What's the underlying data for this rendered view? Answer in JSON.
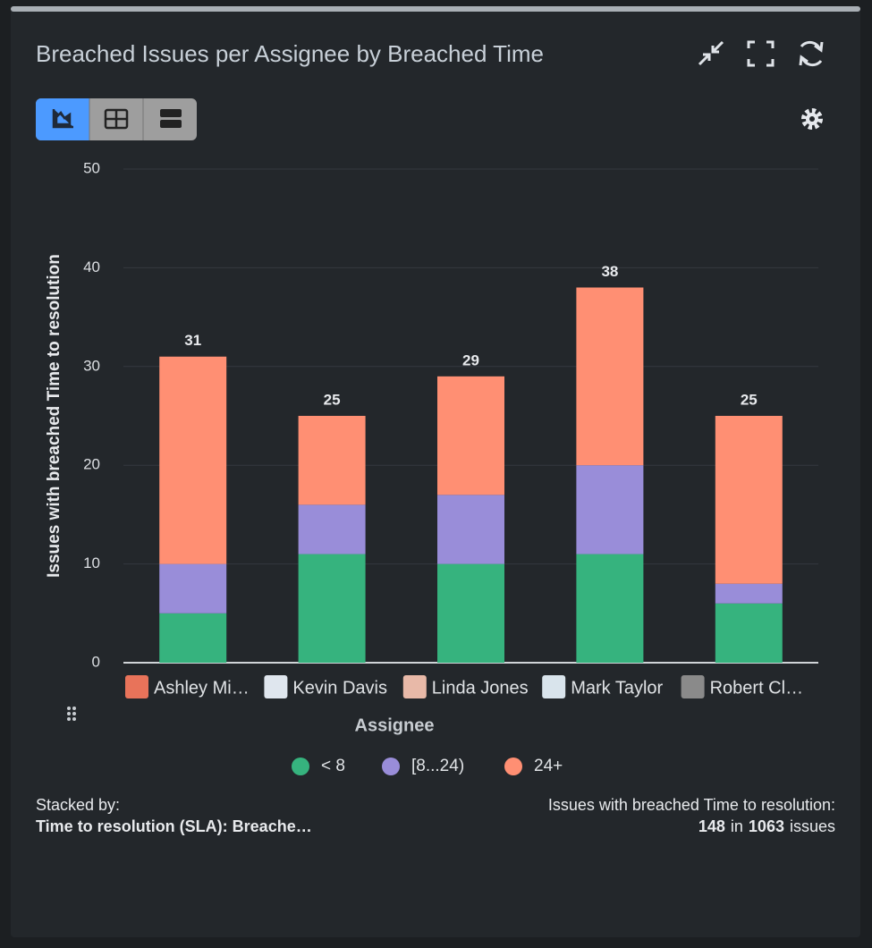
{
  "header": {
    "title": "Breached Issues per Assignee by Breached Time"
  },
  "chart_data": {
    "type": "bar",
    "stacked": true,
    "y_label": "Issues with breached Time to resolution",
    "x_label": "Assignee",
    "categories": [
      "Ashley Mi…",
      "Kevin Davis",
      "Linda Jones",
      "Mark Taylor",
      "Robert Cl…"
    ],
    "series": [
      {
        "name": "< 8",
        "color": "#36b37e",
        "values": [
          5,
          11,
          10,
          11,
          6
        ]
      },
      {
        "name": "[8...24)",
        "color": "#998dd9",
        "values": [
          5,
          5,
          7,
          9,
          2
        ]
      },
      {
        "name": "24+",
        "color": "#ff8f73",
        "values": [
          21,
          9,
          12,
          18,
          17
        ]
      }
    ],
    "totals": [
      31,
      25,
      29,
      38,
      25
    ],
    "ylim": [
      0,
      50
    ],
    "yticks": [
      0,
      10,
      20,
      30,
      40,
      50
    ],
    "grid": true
  },
  "footer": {
    "stacked_by_label": "Stacked by:",
    "stacked_by_value": "Time to resolution (SLA): Breache…",
    "summary_label": "Issues with breached Time to resolution:",
    "breached": "148",
    "in_text": "in",
    "total_issues": "1063",
    "issues_text": "issues"
  }
}
